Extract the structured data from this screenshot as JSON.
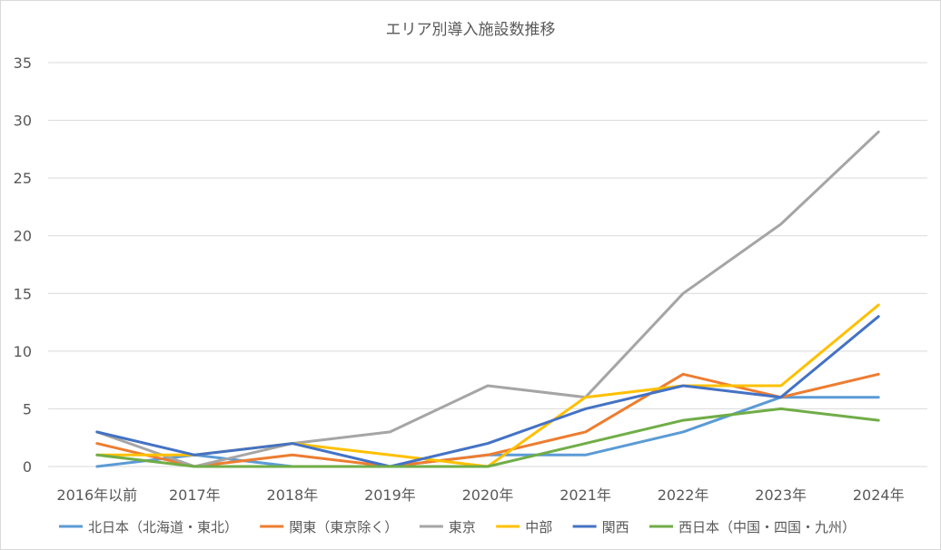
{
  "chart_data": {
    "type": "line",
    "title": "エリア別導入施設数推移",
    "xlabel": "",
    "ylabel": "",
    "categories": [
      "2016年以前",
      "2017年",
      "2018年",
      "2019年",
      "2020年",
      "2021年",
      "2022年",
      "2023年",
      "2024年"
    ],
    "ylim": [
      0,
      35
    ],
    "yticks": [
      0,
      5,
      10,
      15,
      20,
      25,
      30,
      35
    ],
    "grid": true,
    "legend_position": "bottom",
    "series": [
      {
        "name": "北日本（北海道・東北）",
        "color": "#5B9BD5",
        "values": [
          0,
          1,
          0,
          0,
          1,
          1,
          3,
          6,
          6
        ]
      },
      {
        "name": "関東（東京除く）",
        "color": "#ED7D31",
        "values": [
          2,
          0,
          1,
          0,
          1,
          3,
          8,
          6,
          8
        ]
      },
      {
        "name": "東京",
        "color": "#A5A5A5",
        "values": [
          3,
          0,
          2,
          3,
          7,
          6,
          15,
          21,
          29
        ]
      },
      {
        "name": "中部",
        "color": "#FFC000",
        "values": [
          1,
          1,
          2,
          1,
          0,
          6,
          7,
          7,
          14
        ]
      },
      {
        "name": "関西",
        "color": "#4472C4",
        "values": [
          3,
          1,
          2,
          0,
          2,
          5,
          7,
          6,
          13
        ]
      },
      {
        "name": "西日本（中国・四国・九州）",
        "color": "#70AD47",
        "values": [
          1,
          0,
          0,
          0,
          0,
          2,
          4,
          5,
          4
        ]
      }
    ]
  }
}
